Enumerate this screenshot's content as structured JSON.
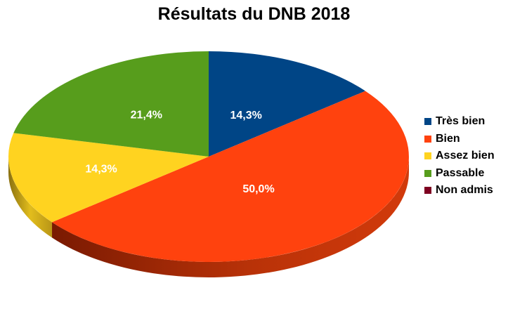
{
  "chart_data": {
    "type": "pie",
    "title": "Résultats du DNB 2018",
    "three_d": true,
    "legend_position": "right",
    "slices": [
      {
        "name": "Très bien",
        "value": 14.3,
        "label": "14,3%",
        "color": "#004586"
      },
      {
        "name": "Bien",
        "value": 50.0,
        "label": "50,0%",
        "color": "#ff420e"
      },
      {
        "name": "Assez bien",
        "value": 14.3,
        "label": "14,3%",
        "color": "#ffd320"
      },
      {
        "name": "Passable",
        "value": 21.4,
        "label": "21,4%",
        "color": "#579d1c"
      },
      {
        "name": "Non admis",
        "value": 0.0,
        "label": "",
        "color": "#7e0021"
      }
    ]
  }
}
